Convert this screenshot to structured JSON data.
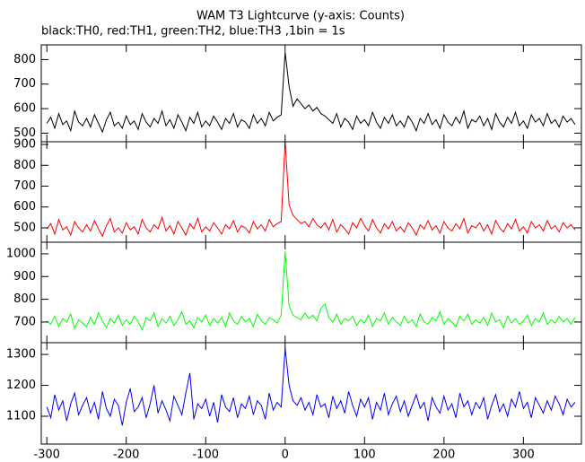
{
  "chart_data": [
    {
      "type": "line",
      "title": "WAM T3 Lightcurve (y-axis: Counts)",
      "subtitle": "black:TH0, red:TH1, green:TH2, blue:TH3 ,1bin = 1s",
      "xlim": [
        -307,
        373
      ],
      "xticks": [
        -300,
        -200,
        -100,
        0,
        100,
        200,
        300
      ],
      "ylim": [
        465,
        860
      ],
      "yticks": [
        500,
        600,
        700,
        800
      ],
      "color": "#000000",
      "x": [
        -300,
        -295,
        -290,
        -285,
        -280,
        -275,
        -270,
        -265,
        -260,
        -255,
        -250,
        -245,
        -240,
        -235,
        -230,
        -225,
        -220,
        -215,
        -210,
        -205,
        -200,
        -195,
        -190,
        -185,
        -180,
        -175,
        -170,
        -165,
        -160,
        -155,
        -150,
        -145,
        -140,
        -135,
        -130,
        -125,
        -120,
        -115,
        -110,
        -105,
        -100,
        -95,
        -90,
        -85,
        -80,
        -75,
        -70,
        -65,
        -60,
        -55,
        -50,
        -45,
        -40,
        -35,
        -30,
        -25,
        -20,
        -15,
        -10,
        -5,
        0,
        5,
        10,
        15,
        20,
        25,
        30,
        35,
        40,
        45,
        50,
        55,
        60,
        65,
        70,
        75,
        80,
        85,
        90,
        95,
        100,
        105,
        110,
        115,
        120,
        125,
        130,
        135,
        140,
        145,
        150,
        155,
        160,
        165,
        170,
        175,
        180,
        185,
        190,
        195,
        200,
        205,
        210,
        215,
        220,
        225,
        230,
        235,
        240,
        245,
        250,
        255,
        260,
        265,
        270,
        275,
        280,
        285,
        290,
        295,
        300,
        305,
        310,
        315,
        320,
        325,
        330,
        335,
        340,
        345,
        350,
        355,
        360,
        365
      ],
      "values": [
        540,
        565,
        520,
        580,
        535,
        550,
        510,
        590,
        545,
        530,
        560,
        525,
        575,
        540,
        505,
        555,
        585,
        530,
        545,
        520,
        570,
        535,
        550,
        515,
        580,
        545,
        525,
        560,
        540,
        590,
        530,
        555,
        520,
        575,
        545,
        510,
        565,
        540,
        585,
        525,
        550,
        530,
        570,
        545,
        515,
        560,
        540,
        580,
        525,
        555,
        545,
        520,
        575,
        540,
        560,
        530,
        585,
        550,
        565,
        575,
        830,
        690,
        610,
        640,
        620,
        600,
        615,
        590,
        605,
        580,
        570,
        555,
        540,
        580,
        525,
        560,
        545,
        515,
        570,
        540,
        555,
        530,
        585,
        545,
        520,
        565,
        540,
        575,
        530,
        550,
        525,
        570,
        545,
        510,
        560,
        540,
        580,
        535,
        555,
        520,
        575,
        545,
        530,
        565,
        540,
        590,
        520,
        555,
        545,
        570,
        530,
        560,
        515,
        580,
        545,
        525,
        565,
        540,
        585,
        530,
        550,
        520,
        575,
        545,
        560,
        530,
        580,
        540,
        555,
        525,
        570,
        545,
        560,
        535
      ]
    },
    {
      "type": "line",
      "xlim": [
        -307,
        373
      ],
      "xticks": [
        -300,
        -200,
        -100,
        0,
        100,
        200,
        300
      ],
      "ylim": [
        431,
        913
      ],
      "yticks": [
        500,
        600,
        700,
        800,
        900
      ],
      "color": "#ff0000",
      "x": [
        -300,
        -295,
        -290,
        -285,
        -280,
        -275,
        -270,
        -265,
        -260,
        -255,
        -250,
        -245,
        -240,
        -235,
        -230,
        -225,
        -220,
        -215,
        -210,
        -205,
        -200,
        -195,
        -190,
        -185,
        -180,
        -175,
        -170,
        -165,
        -160,
        -155,
        -150,
        -145,
        -140,
        -135,
        -130,
        -125,
        -120,
        -115,
        -110,
        -105,
        -100,
        -95,
        -90,
        -85,
        -80,
        -75,
        -70,
        -65,
        -60,
        -55,
        -50,
        -45,
        -40,
        -35,
        -30,
        -25,
        -20,
        -15,
        -10,
        -5,
        0,
        5,
        10,
        15,
        20,
        25,
        30,
        35,
        40,
        45,
        50,
        55,
        60,
        65,
        70,
        75,
        80,
        85,
        90,
        95,
        100,
        105,
        110,
        115,
        120,
        125,
        130,
        135,
        140,
        145,
        150,
        155,
        160,
        165,
        170,
        175,
        180,
        185,
        190,
        195,
        200,
        205,
        210,
        215,
        220,
        225,
        230,
        235,
        240,
        245,
        250,
        255,
        260,
        265,
        270,
        275,
        280,
        285,
        290,
        295,
        300,
        305,
        310,
        315,
        320,
        325,
        330,
        335,
        340,
        345,
        350,
        355,
        360,
        365
      ],
      "values": [
        495,
        520,
        470,
        540,
        490,
        505,
        465,
        530,
        500,
        480,
        515,
        485,
        535,
        495,
        460,
        510,
        545,
        480,
        500,
        475,
        525,
        490,
        505,
        470,
        540,
        500,
        480,
        515,
        495,
        550,
        485,
        510,
        470,
        530,
        500,
        465,
        520,
        495,
        545,
        480,
        505,
        485,
        525,
        500,
        470,
        515,
        495,
        535,
        480,
        510,
        500,
        475,
        530,
        495,
        515,
        485,
        540,
        505,
        520,
        530,
        910,
        610,
        560,
        540,
        520,
        530,
        505,
        545,
        515,
        500,
        525,
        490,
        540,
        480,
        515,
        495,
        470,
        525,
        500,
        545,
        510,
        485,
        540,
        500,
        475,
        520,
        495,
        530,
        485,
        505,
        480,
        525,
        500,
        465,
        515,
        495,
        535,
        490,
        510,
        475,
        530,
        500,
        485,
        520,
        495,
        545,
        475,
        510,
        500,
        525,
        485,
        515,
        470,
        535,
        500,
        480,
        520,
        495,
        540,
        485,
        505,
        475,
        530,
        500,
        515,
        485,
        535,
        495,
        510,
        480,
        525,
        500,
        515,
        490
      ]
    },
    {
      "type": "line",
      "xlim": [
        -307,
        373
      ],
      "xticks": [
        -300,
        -200,
        -100,
        0,
        100,
        200,
        300
      ],
      "ylim": [
        609,
        1051
      ],
      "yticks": [
        700,
        800,
        900,
        1000
      ],
      "color": "#00ff00",
      "x": [
        -300,
        -295,
        -290,
        -285,
        -280,
        -275,
        -270,
        -265,
        -260,
        -255,
        -250,
        -245,
        -240,
        -235,
        -230,
        -225,
        -220,
        -215,
        -210,
        -205,
        -200,
        -195,
        -190,
        -185,
        -180,
        -175,
        -170,
        -165,
        -160,
        -155,
        -150,
        -145,
        -140,
        -135,
        -130,
        -125,
        -120,
        -115,
        -110,
        -105,
        -100,
        -95,
        -90,
        -85,
        -80,
        -75,
        -70,
        -65,
        -60,
        -55,
        -50,
        -45,
        -40,
        -35,
        -30,
        -25,
        -20,
        -15,
        -10,
        -5,
        0,
        5,
        10,
        15,
        20,
        25,
        30,
        35,
        40,
        45,
        50,
        55,
        60,
        65,
        70,
        75,
        80,
        85,
        90,
        95,
        100,
        105,
        110,
        115,
        120,
        125,
        130,
        135,
        140,
        145,
        150,
        155,
        160,
        165,
        170,
        175,
        180,
        185,
        190,
        195,
        200,
        205,
        210,
        215,
        220,
        225,
        230,
        235,
        240,
        245,
        250,
        255,
        260,
        265,
        270,
        275,
        280,
        285,
        290,
        295,
        300,
        305,
        310,
        315,
        320,
        325,
        330,
        335,
        340,
        345,
        350,
        355,
        360,
        365
      ],
      "values": [
        705,
        690,
        725,
        680,
        715,
        700,
        735,
        670,
        710,
        695,
        680,
        720,
        690,
        740,
        705,
        675,
        715,
        695,
        730,
        685,
        710,
        690,
        725,
        700,
        665,
        720,
        705,
        740,
        680,
        715,
        695,
        725,
        685,
        710,
        745,
        690,
        705,
        675,
        720,
        700,
        730,
        685,
        715,
        695,
        720,
        680,
        740,
        705,
        690,
        725,
        700,
        715,
        680,
        735,
        705,
        690,
        720,
        710,
        695,
        730,
        1010,
        770,
        730,
        720,
        710,
        740,
        715,
        730,
        705,
        760,
        780,
        720,
        700,
        735,
        690,
        715,
        705,
        725,
        685,
        710,
        695,
        730,
        680,
        715,
        705,
        740,
        690,
        720,
        700,
        685,
        725,
        695,
        710,
        680,
        735,
        700,
        690,
        720,
        705,
        745,
        690,
        715,
        700,
        680,
        725,
        705,
        735,
        690,
        710,
        695,
        720,
        685,
        740,
        700,
        710,
        675,
        725,
        695,
        715,
        690,
        705,
        730,
        685,
        715,
        700,
        740,
        690,
        710,
        695,
        725,
        700,
        715,
        690,
        720
      ]
    },
    {
      "type": "line",
      "xlim": [
        -307,
        373
      ],
      "xticks": [
        -300,
        -200,
        -100,
        0,
        100,
        200,
        300
      ],
      "ylim": [
        1010,
        1338
      ],
      "yticks": [
        1100,
        1200,
        1300
      ],
      "color": "#0000ff",
      "x": [
        -300,
        -295,
        -290,
        -285,
        -280,
        -275,
        -270,
        -265,
        -260,
        -255,
        -250,
        -245,
        -240,
        -235,
        -230,
        -225,
        -220,
        -215,
        -210,
        -205,
        -200,
        -195,
        -190,
        -185,
        -180,
        -175,
        -170,
        -165,
        -160,
        -155,
        -150,
        -145,
        -140,
        -135,
        -130,
        -125,
        -120,
        -115,
        -110,
        -105,
        -100,
        -95,
        -90,
        -85,
        -80,
        -75,
        -70,
        -65,
        -60,
        -55,
        -50,
        -45,
        -40,
        -35,
        -30,
        -25,
        -20,
        -15,
        -10,
        -5,
        0,
        5,
        10,
        15,
        20,
        25,
        30,
        35,
        40,
        45,
        50,
        55,
        60,
        65,
        70,
        75,
        80,
        85,
        90,
        95,
        100,
        105,
        110,
        115,
        120,
        125,
        130,
        135,
        140,
        145,
        150,
        155,
        160,
        165,
        170,
        175,
        180,
        185,
        190,
        195,
        200,
        205,
        210,
        215,
        220,
        225,
        230,
        235,
        240,
        245,
        250,
        255,
        260,
        265,
        270,
        275,
        280,
        285,
        290,
        295,
        300,
        305,
        310,
        315,
        320,
        325,
        330,
        335,
        340,
        345,
        350,
        355,
        360,
        365
      ],
      "values": [
        1130,
        1095,
        1170,
        1120,
        1150,
        1085,
        1140,
        1175,
        1105,
        1135,
        1160,
        1110,
        1145,
        1090,
        1180,
        1125,
        1100,
        1155,
        1135,
        1070,
        1145,
        1190,
        1115,
        1130,
        1160,
        1095,
        1140,
        1200,
        1110,
        1150,
        1120,
        1085,
        1165,
        1135,
        1105,
        1175,
        1240,
        1090,
        1140,
        1125,
        1155,
        1100,
        1145,
        1080,
        1170,
        1130,
        1115,
        1160,
        1095,
        1140,
        1125,
        1165,
        1105,
        1150,
        1135,
        1090,
        1175,
        1120,
        1145,
        1130,
        1320,
        1200,
        1150,
        1135,
        1160,
        1120,
        1145,
        1105,
        1170,
        1130,
        1140,
        1095,
        1165,
        1125,
        1150,
        1110,
        1180,
        1135,
        1100,
        1155,
        1130,
        1160,
        1090,
        1145,
        1120,
        1175,
        1105,
        1140,
        1165,
        1115,
        1150,
        1100,
        1135,
        1170,
        1125,
        1145,
        1085,
        1160,
        1130,
        1110,
        1165,
        1120,
        1140,
        1095,
        1175,
        1130,
        1150,
        1105,
        1145,
        1125,
        1160,
        1090,
        1135,
        1170,
        1115,
        1140,
        1100,
        1155,
        1130,
        1180,
        1125,
        1145,
        1095,
        1160,
        1135,
        1110,
        1150,
        1120,
        1165,
        1140,
        1105,
        1155,
        1130,
        1145
      ]
    }
  ]
}
